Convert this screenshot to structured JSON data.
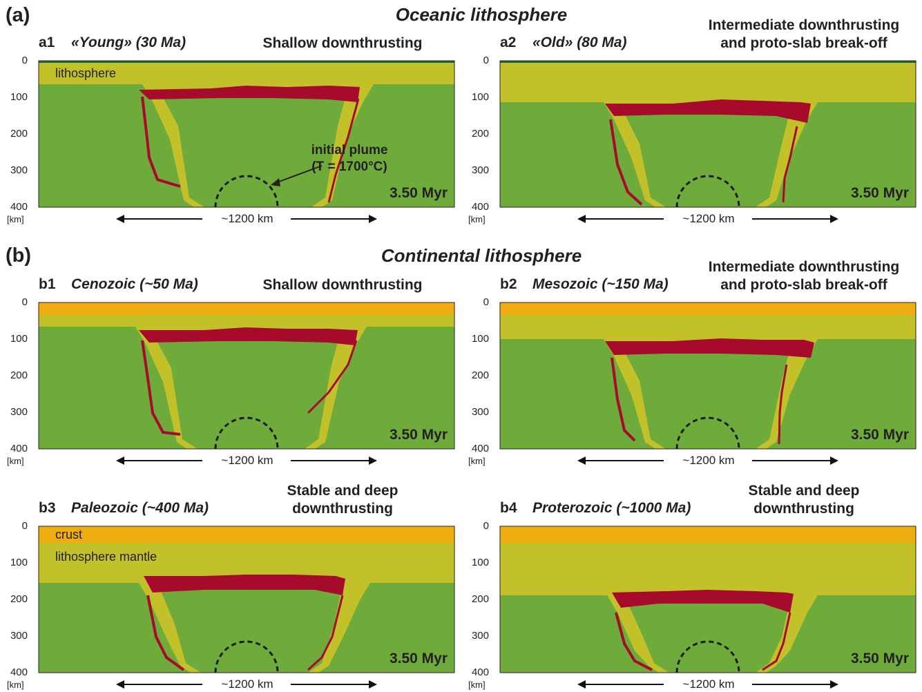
{
  "sections": [
    {
      "letter": "(a)",
      "title": "Oceanic lithosphere"
    },
    {
      "letter": "(b)",
      "title": "Continental lithosphere"
    }
  ],
  "panels": [
    {
      "id": "a1",
      "name": "«Young» (30 Ma)",
      "regime": "Shallow downthrusting",
      "time": "3.50 Myr",
      "labels": [
        "lithosphere"
      ],
      "annotation": [
        "initial plume",
        "(T = 1700°C)"
      ]
    },
    {
      "id": "a2",
      "name": "«Old» (80 Ma)",
      "regime": "Intermediate downthrusting\nand proto-slab break-off",
      "time": "3.50 Myr",
      "labels": [],
      "annotation": []
    },
    {
      "id": "b1",
      "name": "Cenozoic (~50 Ma)",
      "regime": "Shallow downthrusting",
      "time": "3.50 Myr",
      "labels": [],
      "annotation": []
    },
    {
      "id": "b2",
      "name": "Mesozoic (~150 Ma)",
      "regime": "Intermediate downthrusting\nand proto-slab break-off",
      "time": "3.50 Myr",
      "labels": [],
      "annotation": []
    },
    {
      "id": "b3",
      "name": "Paleozoic (~400 Ma)",
      "regime": "Stable and deep\ndownthrusting",
      "time": "3.50 Myr",
      "labels": [
        "crust",
        "lithosphere mantle"
      ],
      "annotation": []
    },
    {
      "id": "b4",
      "name": "Proterozoic (~1000 Ma)",
      "regime": "Stable and deep\ndownthrusting",
      "time": "3.50 Myr",
      "labels": [],
      "annotation": []
    }
  ],
  "depth_axis": {
    "ticks": [
      "0",
      "100",
      "200",
      "300",
      "400"
    ],
    "unit": "[km]"
  },
  "width_label": "~1200 km",
  "colors": {
    "mantle": "#6fab3a",
    "lithosphere": "#c2c12a",
    "crust": "#f0ad12",
    "plume_material": "#a70b2c",
    "ocean_surface": "#1f6b3f",
    "plume_outline": "#1a1a1a"
  }
}
